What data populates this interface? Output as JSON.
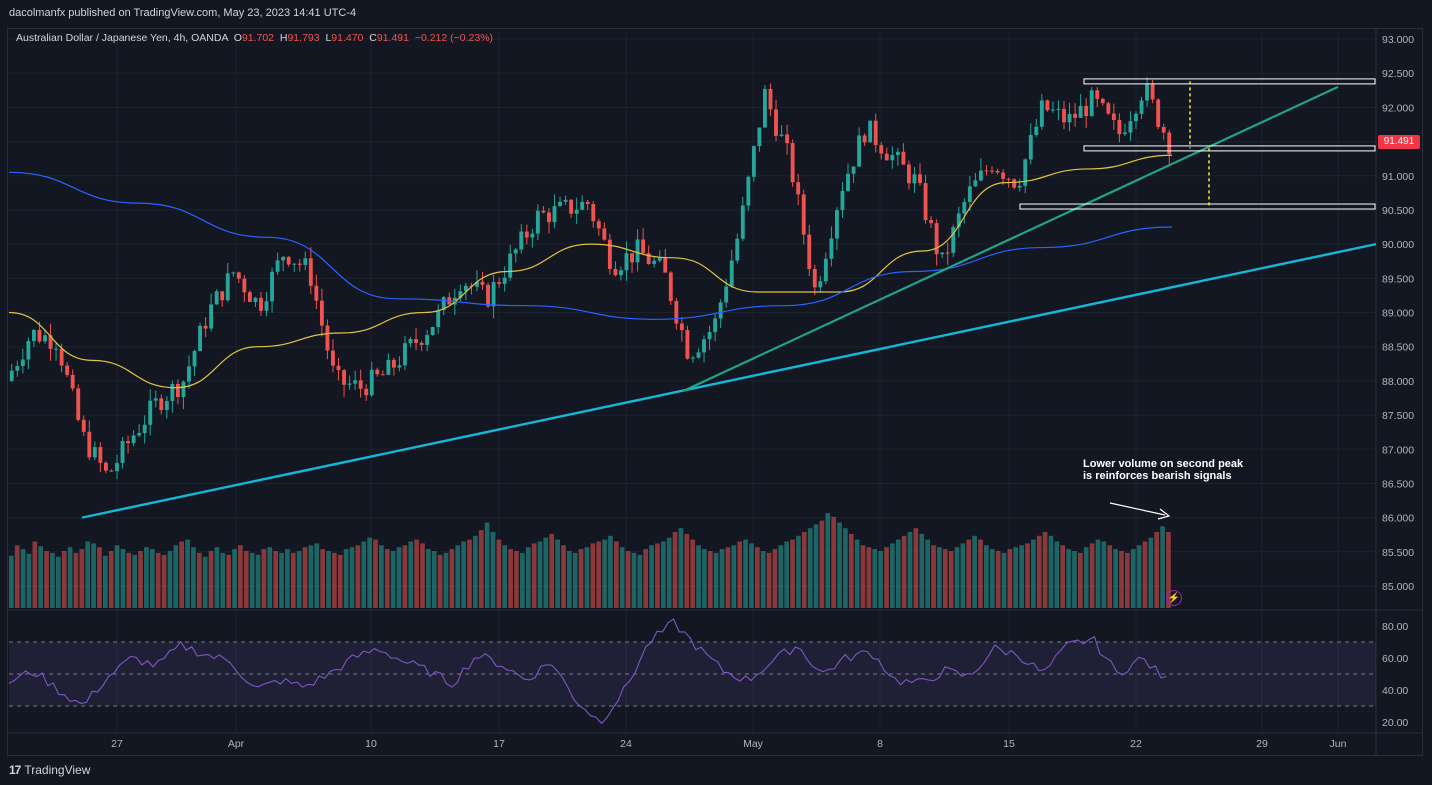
{
  "header": {
    "publisher": "dacolmanfx published on TradingView.com, May 23, 2023 14:41 UTC-4"
  },
  "legend": {
    "symbol": "Australian Dollar / Japanese Yen, 4h, OANDA",
    "o_label": "O",
    "o_value": "91.702",
    "h_label": "H",
    "h_value": "91.793",
    "l_label": "L",
    "l_value": "91.470",
    "c_label": "C",
    "c_value": "91.491",
    "change": "−0.212 (−0.23%)"
  },
  "last_price": "91.491",
  "annotation": {
    "line1": "Lower volume on second peak",
    "line2": "is reinforces bearish signals"
  },
  "footer": {
    "brand": "TradingView"
  },
  "colors": {
    "background": "#131722",
    "up": "#26a69a",
    "down": "#ef5350",
    "ma_short": "#e0c341",
    "ma_long": "#2962ff",
    "trend_green": "#20a386",
    "trend_cyan": "#14b8d6",
    "rsi": "#7e57c2",
    "badge": "#f23645"
  },
  "chart_data": [
    {
      "type": "candlestick",
      "title": "Australian Dollar / Japanese Yen, 4h, OANDA",
      "y_ticks": [
        "93.000",
        "92.500",
        "92.000",
        "91.500",
        "91.000",
        "90.500",
        "90.000",
        "89.500",
        "89.000",
        "88.500",
        "88.000",
        "87.500",
        "87.000",
        "86.500",
        "86.000",
        "85.500",
        "85.000"
      ],
      "ylim": [
        84.65,
        93.25
      ],
      "x_ticks": [
        "27",
        "Apr",
        "10",
        "17",
        "24",
        "May",
        "8",
        "15",
        "22",
        "29",
        "Jun"
      ],
      "series": [
        {
          "name": "",
          "kind": "close_path",
          "y": [
            88.0,
            88.7,
            88.6,
            87.2,
            86.6,
            87.2,
            87.7,
            88.0,
            89.0,
            89.6,
            89.1,
            89.9,
            89.6,
            88.0,
            87.9,
            88.1,
            88.5,
            88.9,
            89.5,
            89.2,
            89.8,
            90.4,
            90.5,
            90.6,
            89.7,
            89.9,
            89.6,
            88.4,
            88.8,
            90.2,
            92.2,
            91.2,
            89.3,
            90.8,
            91.7,
            91.3,
            90.9,
            89.7,
            90.7,
            91.2,
            90.9,
            92.0,
            91.8,
            92.1,
            91.6,
            92.3,
            91.49
          ]
        },
        {
          "name": "",
          "kind": "moving_average",
          "y": [
            89.0,
            88.3,
            87.9,
            88.5,
            88.7,
            89.0,
            89.6,
            90.0,
            89.8,
            89.3,
            89.3,
            89.9,
            90.9,
            91.1,
            91.3
          ]
        },
        {
          "name": "",
          "kind": "moving_average",
          "y": [
            91.05,
            90.6,
            90.1,
            89.2,
            89.1,
            88.9,
            89.1,
            89.6,
            89.95,
            90.25
          ]
        }
      ],
      "price_lines": [
        92.38,
        91.4,
        90.55
      ],
      "trendlines": [
        {
          "x": [
            "Mar 26",
            "Jun 2"
          ],
          "y": [
            86.0,
            90.0
          ]
        },
        {
          "x": [
            "Apr 27",
            "May 30"
          ],
          "y": [
            87.85,
            92.3
          ]
        }
      ]
    },
    {
      "type": "bar",
      "title": "",
      "values": [
        55,
        66,
        62,
        57,
        70,
        65,
        60,
        58,
        54,
        60,
        64,
        58,
        62,
        70,
        68,
        64,
        55,
        60,
        66,
        62,
        58,
        56,
        60,
        64,
        62,
        58,
        56,
        60,
        66,
        70,
        72,
        64,
        58,
        54,
        60,
        64,
        58,
        56,
        62,
        66,
        60,
        58,
        56,
        62,
        64,
        60,
        58,
        62,
        58,
        60,
        64,
        66,
        68,
        62,
        60,
        58,
        56,
        62,
        64,
        66,
        70,
        74,
        72,
        66,
        62,
        60,
        64,
        66,
        70,
        72,
        68,
        62,
        60,
        56,
        58,
        62,
        66,
        70,
        72,
        76,
        82,
        90,
        80,
        72,
        66,
        62,
        60,
        58,
        64,
        68,
        70,
        74,
        78,
        72,
        66,
        60,
        58,
        62,
        64,
        68,
        70,
        72,
        76,
        70,
        64,
        60,
        58,
        56,
        62,
        66,
        68,
        70,
        74,
        80,
        84,
        78,
        72,
        66,
        62,
        60,
        58,
        62,
        64,
        66,
        70,
        72,
        68,
        64,
        60,
        58,
        62,
        66,
        70,
        72,
        76,
        80,
        84,
        88,
        92,
        100,
        96,
        90,
        84,
        78,
        72,
        66,
        64,
        62,
        60,
        64,
        68,
        72,
        76,
        80,
        84,
        78,
        72,
        66,
        64,
        62,
        60,
        64,
        68,
        72,
        76,
        72,
        66,
        62,
        60,
        58,
        62,
        64,
        66,
        68,
        72,
        76,
        80,
        76,
        70,
        66,
        62,
        60,
        58,
        64,
        68,
        72,
        70,
        66,
        62,
        60,
        58,
        62,
        66,
        70,
        74,
        80,
        86,
        80
      ],
      "up": [
        1,
        0,
        1,
        1,
        0,
        1,
        0,
        1,
        1,
        0,
        1,
        0,
        0,
        1,
        1,
        0,
        1,
        0,
        1,
        1,
        0,
        1,
        0,
        1,
        1,
        0,
        0,
        1,
        1,
        0,
        1,
        1,
        0,
        1,
        0,
        1,
        1,
        0,
        1,
        0,
        0,
        1,
        1,
        0,
        1,
        0,
        1,
        1,
        0,
        1,
        0,
        1,
        1,
        0,
        1,
        0,
        0,
        1,
        1,
        0,
        1,
        1,
        0,
        1,
        0,
        1,
        1,
        0,
        1,
        0,
        0,
        1,
        1,
        0,
        1,
        0,
        1,
        1,
        0,
        1,
        0,
        1,
        1,
        0,
        1,
        0,
        0,
        1,
        1,
        0,
        1,
        1,
        0,
        1,
        0,
        1,
        1,
        0,
        1,
        0,
        0,
        1,
        1,
        0,
        1,
        0,
        1,
        1,
        0,
        1,
        0,
        1,
        1,
        0,
        1,
        0,
        0,
        1,
        1,
        0,
        1,
        1,
        0,
        1,
        0,
        1,
        1,
        0,
        1,
        0,
        0,
        1,
        1,
        0,
        1,
        0,
        1,
        1,
        0,
        1,
        0,
        1,
        1,
        0,
        1,
        0,
        0,
        1,
        1,
        0,
        1,
        1,
        0,
        1,
        0,
        1,
        1,
        0,
        1,
        0,
        0,
        1,
        1,
        0,
        1,
        0,
        1,
        1,
        0,
        1,
        0,
        1,
        1,
        0,
        1,
        0,
        0,
        1,
        1,
        0,
        1,
        1,
        0,
        1,
        0,
        1,
        1,
        0,
        1,
        0,
        0,
        1,
        1,
        0,
        1,
        0,
        1,
        0,
        0
      ]
    },
    {
      "type": "line",
      "title": "",
      "y_ticks": [
        "80.00",
        "60.00",
        "40.00",
        "20.00"
      ],
      "ylim": [
        15,
        87
      ],
      "bands": [
        70,
        50,
        30
      ],
      "series": [
        {
          "name": "",
          "y": [
            45,
            52,
            40,
            30,
            48,
            60,
            55,
            68,
            62,
            58,
            40,
            46,
            42,
            50,
            60,
            66,
            58,
            52,
            44,
            62,
            56,
            46,
            58,
            34,
            20,
            40,
            70,
            82,
            66,
            52,
            46,
            58,
            68,
            50,
            60,
            64,
            46,
            44,
            52,
            48,
            66,
            62,
            50,
            68,
            72,
            50,
            60,
            46
          ]
        }
      ]
    }
  ]
}
